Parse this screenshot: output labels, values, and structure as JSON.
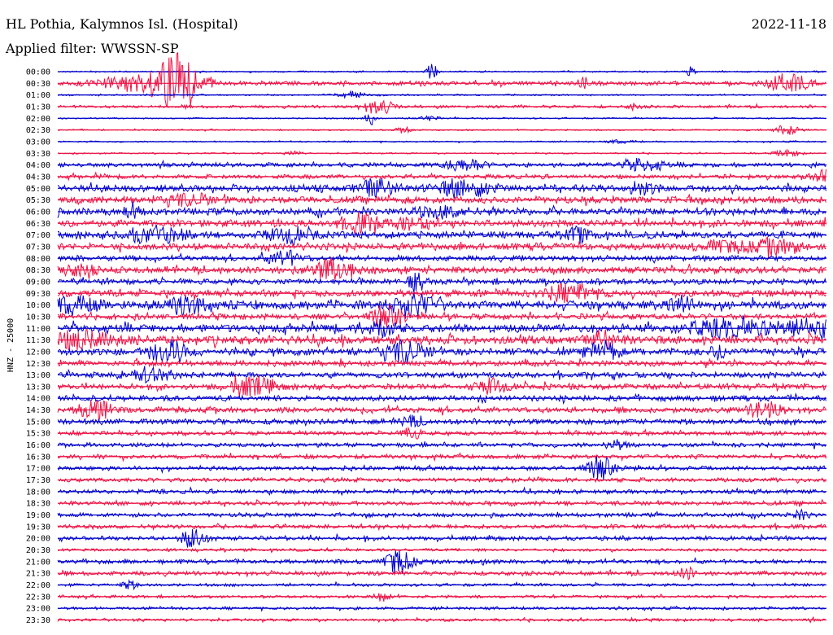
{
  "header": {
    "station": "HL Pothia, Kalymnos Isl. (Hospital)",
    "date": "2022-11-18",
    "filter": "Applied filter: WWSSN-SP"
  },
  "chart_data": {
    "type": "line",
    "ylabel": "HNZ - 25000",
    "row_labels": [
      "00:00",
      "00:30",
      "01:00",
      "01:30",
      "02:00",
      "02:30",
      "03:00",
      "03:30",
      "04:00",
      "04:30",
      "05:00",
      "05:30",
      "06:00",
      "06:30",
      "07:00",
      "07:30",
      "08:00",
      "08:30",
      "09:00",
      "09:30",
      "10:00",
      "10:30",
      "11:00",
      "11:30",
      "12:00",
      "12:30",
      "13:00",
      "13:30",
      "14:00",
      "14:30",
      "15:00",
      "15:30",
      "16:00",
      "16:30",
      "17:00",
      "17:30",
      "18:00",
      "18:30",
      "19:00",
      "19:30",
      "20:00",
      "20:30",
      "21:00",
      "21:30",
      "22:00",
      "22:30",
      "23:00",
      "23:30"
    ],
    "x_range_minutes": [
      0,
      30
    ],
    "grid": false,
    "series_colors": [
      "#0000cc",
      "#ee1144"
    ],
    "noise_level": [
      1,
      3,
      1,
      2,
      1,
      1,
      1,
      1,
      3,
      3,
      5,
      5,
      5,
      5,
      5,
      5,
      4,
      5,
      4,
      5,
      6,
      4,
      6,
      6,
      5,
      4,
      4,
      4,
      4,
      4,
      4,
      3,
      3,
      3,
      3,
      3,
      3,
      3,
      3,
      3,
      3,
      2,
      3,
      3,
      2,
      2,
      2,
      2
    ],
    "events": [
      {
        "row": 0,
        "t": 14.6,
        "amp": 10,
        "dur": 0.2
      },
      {
        "row": 0,
        "t": 24.7,
        "amp": 6,
        "dur": 0.15
      },
      {
        "row": 1,
        "t": 2.5,
        "amp": 6,
        "dur": 1.2
      },
      {
        "row": 1,
        "t": 4.2,
        "amp": 12,
        "dur": 1.0
      },
      {
        "row": 1,
        "t": 4.8,
        "amp": 26,
        "dur": 0.8
      },
      {
        "row": 1,
        "t": 20.5,
        "amp": 7,
        "dur": 0.2
      },
      {
        "row": 1,
        "t": 28.5,
        "amp": 12,
        "dur": 0.8
      },
      {
        "row": 2,
        "t": 11.5,
        "amp": 4,
        "dur": 0.5
      },
      {
        "row": 3,
        "t": 12.5,
        "amp": 9,
        "dur": 0.6
      },
      {
        "row": 3,
        "t": 22.5,
        "amp": 4,
        "dur": 0.2
      },
      {
        "row": 4,
        "t": 12.2,
        "amp": 8,
        "dur": 0.2
      },
      {
        "row": 4,
        "t": 14.5,
        "amp": 3,
        "dur": 0.4
      },
      {
        "row": 5,
        "t": 13.5,
        "amp": 4,
        "dur": 0.3
      },
      {
        "row": 5,
        "t": 28.5,
        "amp": 6,
        "dur": 0.5
      },
      {
        "row": 6,
        "t": 22.0,
        "amp": 2,
        "dur": 0.5
      },
      {
        "row": 7,
        "t": 9.2,
        "amp": 3,
        "dur": 0.3
      },
      {
        "row": 7,
        "t": 28.5,
        "amp": 4,
        "dur": 0.5
      },
      {
        "row": 8,
        "t": 15.9,
        "amp": 7,
        "dur": 0.8
      },
      {
        "row": 8,
        "t": 22.8,
        "amp": 7,
        "dur": 0.8
      },
      {
        "row": 9,
        "t": 30.0,
        "amp": 7,
        "dur": 0.6
      },
      {
        "row": 10,
        "t": 12.5,
        "amp": 10,
        "dur": 0.7
      },
      {
        "row": 10,
        "t": 15.9,
        "amp": 10,
        "dur": 1.0
      },
      {
        "row": 10,
        "t": 22.8,
        "amp": 7,
        "dur": 0.5
      },
      {
        "row": 11,
        "t": 5.0,
        "amp": 6,
        "dur": 1.0
      },
      {
        "row": 12,
        "t": 3.0,
        "amp": 9,
        "dur": 0.3
      },
      {
        "row": 12,
        "t": 15.0,
        "amp": 6,
        "dur": 1.0
      },
      {
        "row": 13,
        "t": 11.8,
        "amp": 10,
        "dur": 0.8
      },
      {
        "row": 13,
        "t": 14.0,
        "amp": 6,
        "dur": 0.8
      },
      {
        "row": 14,
        "t": 3.8,
        "amp": 10,
        "dur": 1.0
      },
      {
        "row": 14,
        "t": 9.0,
        "amp": 9,
        "dur": 0.8
      },
      {
        "row": 14,
        "t": 20.3,
        "amp": 8,
        "dur": 0.5
      },
      {
        "row": 15,
        "t": 28.0,
        "amp": 8,
        "dur": 1.0
      },
      {
        "row": 15,
        "t": 26.0,
        "amp": 6,
        "dur": 0.8
      },
      {
        "row": 16,
        "t": 8.8,
        "amp": 9,
        "dur": 0.6
      },
      {
        "row": 17,
        "t": 0.8,
        "amp": 7,
        "dur": 0.6
      },
      {
        "row": 17,
        "t": 10.8,
        "amp": 12,
        "dur": 0.8
      },
      {
        "row": 18,
        "t": 14.0,
        "amp": 10,
        "dur": 0.3
      },
      {
        "row": 19,
        "t": 20.0,
        "amp": 9,
        "dur": 1.0
      },
      {
        "row": 20,
        "t": 0.6,
        "amp": 10,
        "dur": 0.8
      },
      {
        "row": 20,
        "t": 5.0,
        "amp": 9,
        "dur": 0.8
      },
      {
        "row": 20,
        "t": 13.9,
        "amp": 12,
        "dur": 0.9
      },
      {
        "row": 20,
        "t": 24.3,
        "amp": 11,
        "dur": 0.5
      },
      {
        "row": 21,
        "t": 12.9,
        "amp": 12,
        "dur": 0.6
      },
      {
        "row": 22,
        "t": 12.6,
        "amp": 10,
        "dur": 0.6
      },
      {
        "row": 22,
        "t": 26.0,
        "amp": 8,
        "dur": 1.5
      },
      {
        "row": 22,
        "t": 29.2,
        "amp": 9,
        "dur": 1.5
      },
      {
        "row": 23,
        "t": 0.8,
        "amp": 9,
        "dur": 1.5
      },
      {
        "row": 23,
        "t": 21.3,
        "amp": 10,
        "dur": 0.5
      },
      {
        "row": 24,
        "t": 4.3,
        "amp": 12,
        "dur": 0.8
      },
      {
        "row": 24,
        "t": 13.5,
        "amp": 13,
        "dur": 0.8
      },
      {
        "row": 24,
        "t": 21.3,
        "amp": 10,
        "dur": 0.6
      },
      {
        "row": 24,
        "t": 25.8,
        "amp": 7,
        "dur": 0.4
      },
      {
        "row": 26,
        "t": 3.5,
        "amp": 7,
        "dur": 1.0
      },
      {
        "row": 27,
        "t": 7.2,
        "amp": 10,
        "dur": 0.5
      },
      {
        "row": 27,
        "t": 8.0,
        "amp": 10,
        "dur": 0.5
      },
      {
        "row": 27,
        "t": 17.0,
        "amp": 9,
        "dur": 0.6
      },
      {
        "row": 29,
        "t": 1.5,
        "amp": 12,
        "dur": 0.6
      },
      {
        "row": 29,
        "t": 27.6,
        "amp": 11,
        "dur": 0.6
      },
      {
        "row": 30,
        "t": 13.8,
        "amp": 6,
        "dur": 0.4
      },
      {
        "row": 31,
        "t": 13.8,
        "amp": 6,
        "dur": 0.4
      },
      {
        "row": 32,
        "t": 21.8,
        "amp": 6,
        "dur": 0.4
      },
      {
        "row": 34,
        "t": 21.2,
        "amp": 13,
        "dur": 0.5
      },
      {
        "row": 38,
        "t": 29.0,
        "amp": 5,
        "dur": 0.3
      },
      {
        "row": 40,
        "t": 5.3,
        "amp": 14,
        "dur": 0.4
      },
      {
        "row": 42,
        "t": 13.3,
        "amp": 15,
        "dur": 0.5
      },
      {
        "row": 42,
        "t": 16.5,
        "amp": 5,
        "dur": 0.2
      },
      {
        "row": 43,
        "t": 24.5,
        "amp": 6,
        "dur": 0.4
      },
      {
        "row": 44,
        "t": 2.8,
        "amp": 5,
        "dur": 0.3
      },
      {
        "row": 45,
        "t": 12.7,
        "amp": 6,
        "dur": 0.3
      }
    ]
  }
}
